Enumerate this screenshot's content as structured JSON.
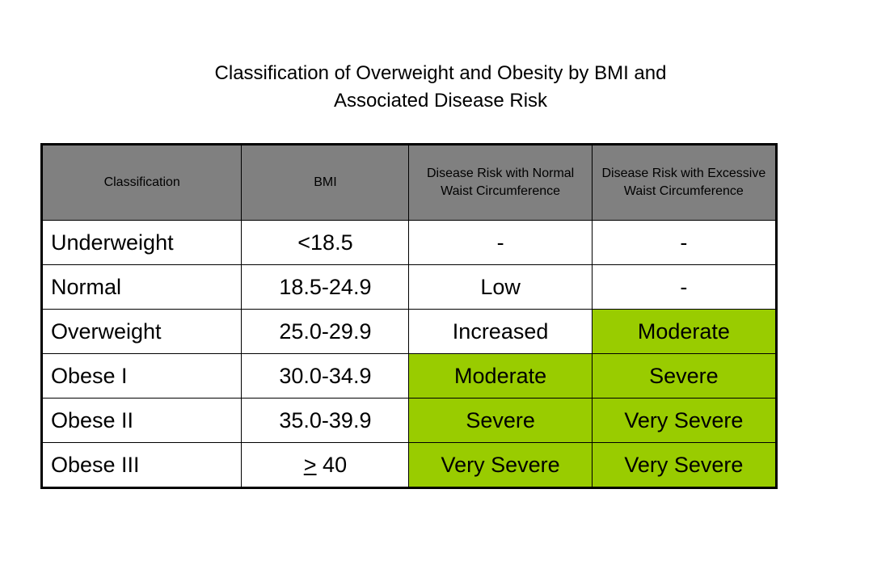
{
  "title": {
    "line1": "Classification of Overweight and Obesity by BMI and",
    "line2": "Associated Disease Risk"
  },
  "colors": {
    "header_bg": "#808080",
    "highlight_bg": "#99cc00",
    "border": "#000000"
  },
  "table": {
    "headers": [
      "Classification",
      "BMI",
      "Disease Risk with Normal Waist Circumference",
      "Disease Risk with Excessive Waist Circumference"
    ],
    "rows": [
      {
        "classification": "Underweight",
        "bmi": "<18.5",
        "risk_normal": "-",
        "risk_excessive": "-",
        "highlight_normal": false,
        "highlight_excessive": false
      },
      {
        "classification": "Normal",
        "bmi": "18.5-24.9",
        "risk_normal": "Low",
        "risk_excessive": "-",
        "highlight_normal": false,
        "highlight_excessive": false
      },
      {
        "classification": "Overweight",
        "bmi": "25.0-29.9",
        "risk_normal": "Increased",
        "risk_excessive": "Moderate",
        "highlight_normal": false,
        "highlight_excessive": true
      },
      {
        "classification": "Obese I",
        "bmi": "30.0-34.9",
        "risk_normal": "Moderate",
        "risk_excessive": "Severe",
        "highlight_normal": true,
        "highlight_excessive": true
      },
      {
        "classification": "Obese II",
        "bmi": "35.0-39.9",
        "risk_normal": "Severe",
        "risk_excessive": "Very Severe",
        "highlight_normal": true,
        "highlight_excessive": true
      },
      {
        "classification": "Obese III",
        "bmi_symbol": ">",
        "bmi_value": " 40",
        "risk_normal": "Very Severe",
        "risk_excessive": "Very Severe",
        "highlight_normal": true,
        "highlight_excessive": true
      }
    ]
  }
}
